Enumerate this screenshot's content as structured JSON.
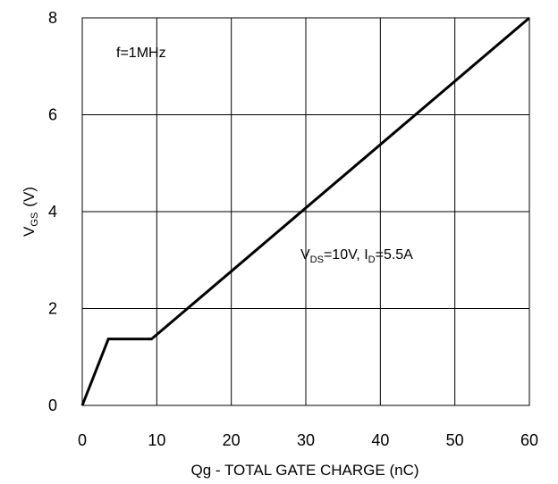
{
  "chart_data": {
    "type": "line",
    "xlabel": "Qg -  TOTAL GATE CHARGE (nC)",
    "ylabel": {
      "main": "V",
      "sub": "GS",
      "unit": "(V)"
    },
    "xlim": [
      0,
      60
    ],
    "ylim": [
      0,
      8
    ],
    "x_ticks": [
      0,
      10,
      20,
      30,
      40,
      50,
      60
    ],
    "y_ticks": [
      0,
      2,
      4,
      6,
      8
    ],
    "grid": true,
    "line_color": "#000000",
    "series": [
      {
        "x": [
          0,
          3.5,
          9.3,
          60
        ],
        "y": [
          0,
          1.37,
          1.37,
          8.0
        ]
      }
    ],
    "annotations": {
      "freq": "f=1MHz",
      "conditions": {
        "v": "V",
        "ds_sub": "DS",
        "v_eq": "=10V, I",
        "d_sub": "D",
        "i_eq": "=5.5A"
      }
    }
  }
}
